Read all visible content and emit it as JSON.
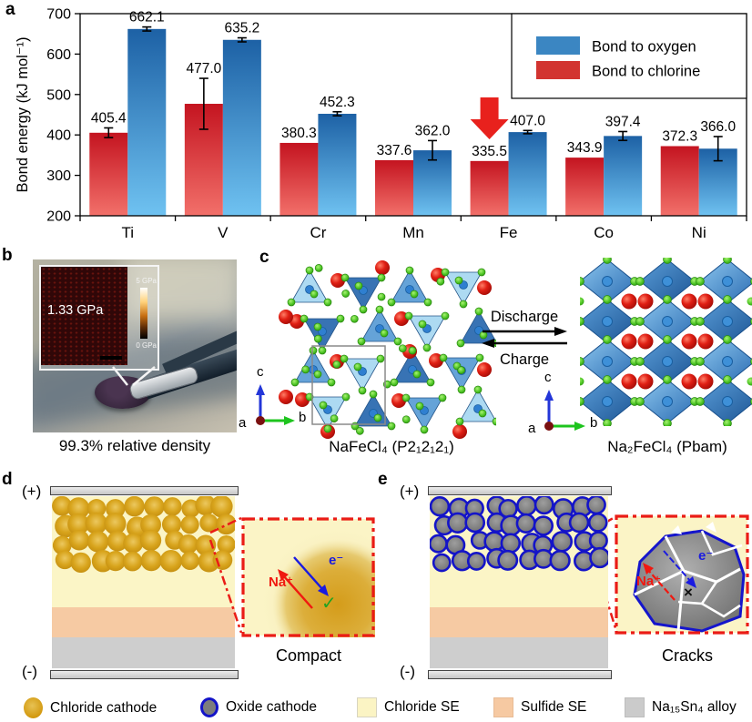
{
  "figure": {
    "panel_labels": {
      "a": "a",
      "b": "b",
      "c": "c",
      "d": "d",
      "e": "e"
    }
  },
  "chart_data": {
    "type": "bar",
    "title": "",
    "xlabel": "",
    "ylabel": "Bond energy (kJ mol⁻¹)",
    "ylim": [
      200,
      700
    ],
    "yticks": [
      200,
      300,
      400,
      500,
      600,
      700
    ],
    "categories": [
      "Ti",
      "V",
      "Cr",
      "Mn",
      "Fe",
      "Co",
      "Ni"
    ],
    "series": [
      {
        "name": "Bond to chlorine",
        "color": "#d23430",
        "gradient": [
          "#c41420",
          "#f2706a"
        ],
        "values": [
          405.4,
          477.0,
          380.3,
          337.6,
          335.5,
          343.9,
          372.3
        ],
        "errors": [
          12,
          63,
          0,
          0,
          0,
          0,
          0
        ]
      },
      {
        "name": "Bond to oxygen",
        "color": "#3b86c2",
        "gradient": [
          "#1d61a5",
          "#6fc2f1"
        ],
        "values": [
          662.1,
          635.2,
          452.3,
          362.0,
          407.0,
          397.4,
          366.0
        ],
        "errors": [
          5,
          5,
          5,
          24,
          4,
          11,
          30
        ]
      }
    ],
    "legend": {
      "position": "top-right",
      "order": [
        "Bond to oxygen",
        "Bond to chlorine"
      ]
    },
    "annotation": {
      "type": "down-arrow",
      "category": "Fe",
      "color": "#e8211d"
    },
    "value_labels": true,
    "grid": false
  },
  "panel_b": {
    "inset_value": "1.33 GPa",
    "scale_max": "5 GPa",
    "scale_min": "0 GPa",
    "caption": "99.3% relative density"
  },
  "panel_c": {
    "left_label": "NaFeCl₄ (P2₁2₁2₁)",
    "right_label": "Na₂FeCl₄ (Pbam)",
    "forward": "Discharge",
    "backward": "Charge",
    "axis_a": "a",
    "axis_b": "b",
    "axis_c": "c"
  },
  "panel_d": {
    "positive": "(+)",
    "negative": "(-)",
    "ion": "Na⁺",
    "electron": "e⁻",
    "mark": "✓",
    "caption": "Compact"
  },
  "panel_e": {
    "positive": "(+)",
    "negative": "(-)",
    "ion": "Na⁺",
    "electron": "e⁻",
    "mark": "×",
    "caption": "Cracks"
  },
  "legend_bottom": {
    "items": [
      {
        "swatch": "chloride-cathode",
        "label": "Chloride cathode"
      },
      {
        "swatch": "oxide-cathode",
        "label": "Oxide cathode"
      },
      {
        "swatch": "chloride-se",
        "label": "Chloride SE"
      },
      {
        "swatch": "sulfide-se",
        "label": "Sulfide SE"
      },
      {
        "swatch": "na15sn4-alloy",
        "label": "Na₁₅Sn₄ alloy"
      }
    ]
  },
  "colors": {
    "bar_red_top": "#c41420",
    "bar_red_bottom": "#f2706a",
    "bar_blue_top": "#1d61a5",
    "bar_blue_bottom": "#6fc2f1",
    "arrow_red": "#e8211d",
    "chloride_se": "#fbf5c6",
    "sulfide_se": "#f6caa3",
    "alloy_gray": "#cecece",
    "gold_particle": "#d8a41c",
    "oxide_particle": "#7d7d7d",
    "oxide_ring": "#1414c8"
  }
}
